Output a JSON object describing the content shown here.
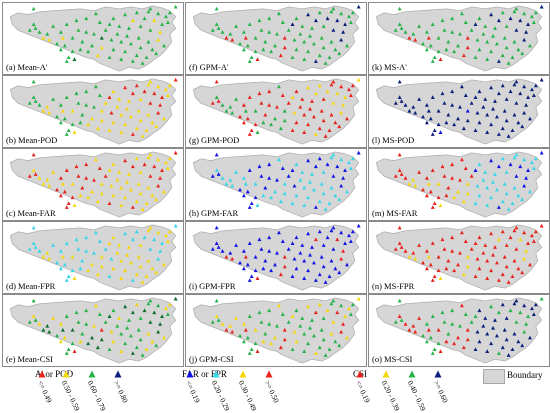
{
  "colors": {
    "boundary_fill": "#d6d6d6",
    "boundary_stroke": "#b0b0b0",
    "red": "#e8231d",
    "yellow": "#f5d90c",
    "green": "#25b34a",
    "darkgreen": "#0b6e2f",
    "cyan": "#37d7ea",
    "blue": "#1414e6",
    "navy": "#0a1e7a",
    "black": "#111111"
  },
  "panels": [
    {
      "label": "(a) Mean-A'",
      "scheme": "green",
      "boundary": "boundary-icon"
    },
    {
      "label": "(b) Mean-POD",
      "scheme": "mix_yellow_green"
    },
    {
      "label": "(c) Mean-FAR",
      "scheme": "yellow_red"
    },
    {
      "label": "(d) Mean-FPR",
      "scheme": "cyan_yellow"
    },
    {
      "label": "(e) Mean-CSI",
      "scheme": "green_yellow"
    },
    {
      "label": "(f) GPM-A'",
      "scheme": "green_blue"
    },
    {
      "label": "(g) GPM-POD",
      "scheme": "red_yellow"
    },
    {
      "label": "(h) GPM-FAR",
      "scheme": "cyan_blue"
    },
    {
      "label": "(i) GPM-FPR",
      "scheme": "blue"
    },
    {
      "label": "(j) GPM-CSI",
      "scheme": "green_yellow2"
    },
    {
      "label": "(k) MS-A'",
      "scheme": "green_blue"
    },
    {
      "label": "(l) MS-POD",
      "scheme": "navy"
    },
    {
      "label": "(m) MS-FAR",
      "scheme": "cyan_red"
    },
    {
      "label": "(n) MS-FPR",
      "scheme": "red"
    },
    {
      "label": "(o) MS-CSI",
      "scheme": "navy_green"
    }
  ],
  "legends": [
    {
      "title": "A' or POD",
      "items": [
        {
          "text": "<= 0.49",
          "color": "#e8231d"
        },
        {
          "text": "0.50 - 0.59",
          "color": "#f5d90c"
        },
        {
          "text": "0.60 - 0.79",
          "color": "#25b34a"
        },
        {
          "text": ">= 0.80",
          "color": "#0a1e7a"
        }
      ]
    },
    {
      "title": "FAR or FPR",
      "items": [
        {
          "text": "<= 0.19",
          "color": "#1414e6"
        },
        {
          "text": "0.20 - 0.29",
          "color": "#37d7ea"
        },
        {
          "text": "0.30 - 0.49",
          "color": "#f5d90c"
        },
        {
          "text": ">= 0.50",
          "color": "#e8231d"
        }
      ]
    },
    {
      "title": "CSI",
      "items": [
        {
          "text": "<= 0.19",
          "color": "#e8231d"
        },
        {
          "text": "0.20 - 0.39",
          "color": "#f5d90c"
        },
        {
          "text": "0.40 - 0.59",
          "color": "#25b34a"
        },
        {
          "text": ">= 0.60",
          "color": "#0a1e7a"
        }
      ]
    }
  ],
  "boundary_legend": {
    "label": "Boundary"
  }
}
